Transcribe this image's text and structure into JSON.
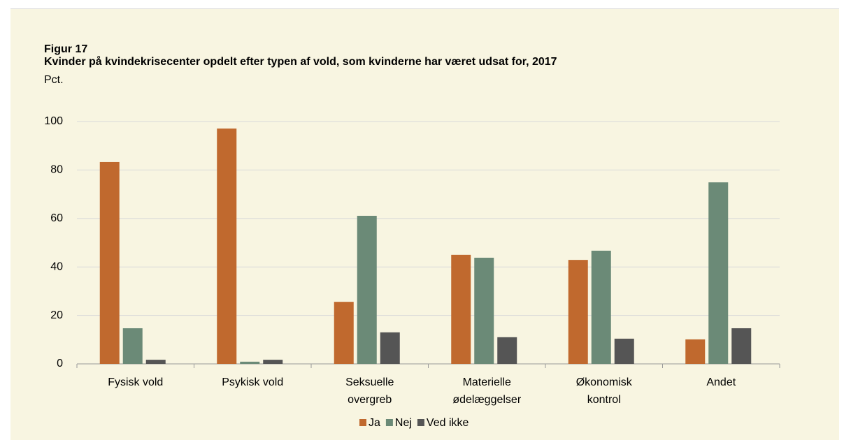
{
  "chart_data": {
    "type": "bar",
    "figure_label": "Figur 17",
    "title": "Kvinder på kvindekrisecenter opdelt efter typen af vold, som kvinderne har været udsat for, 2017",
    "y_label": "Pct.",
    "categories": [
      "Fysisk vold",
      "Psykisk vold",
      "Seksuelle\novergreb",
      "Materielle\nødelæggelser",
      "Økonomisk\nkontrol",
      "Andet"
    ],
    "series": [
      {
        "name": "Ja",
        "color": "#c0692e",
        "values": [
          83.3,
          97.1,
          25.6,
          45.0,
          42.9,
          10.1
        ]
      },
      {
        "name": "Nej",
        "color": "#6b8a77",
        "values": [
          14.7,
          0.9,
          61.1,
          43.8,
          46.7,
          74.9
        ]
      },
      {
        "name": "Ved ikke",
        "color": "#555555",
        "values": [
          1.7,
          1.7,
          13.0,
          11.0,
          10.4,
          14.7
        ]
      }
    ],
    "ylim": [
      0,
      100
    ],
    "yticks": [
      0,
      20,
      40,
      60,
      80,
      100
    ],
    "grid": true,
    "legend": "bottom"
  }
}
